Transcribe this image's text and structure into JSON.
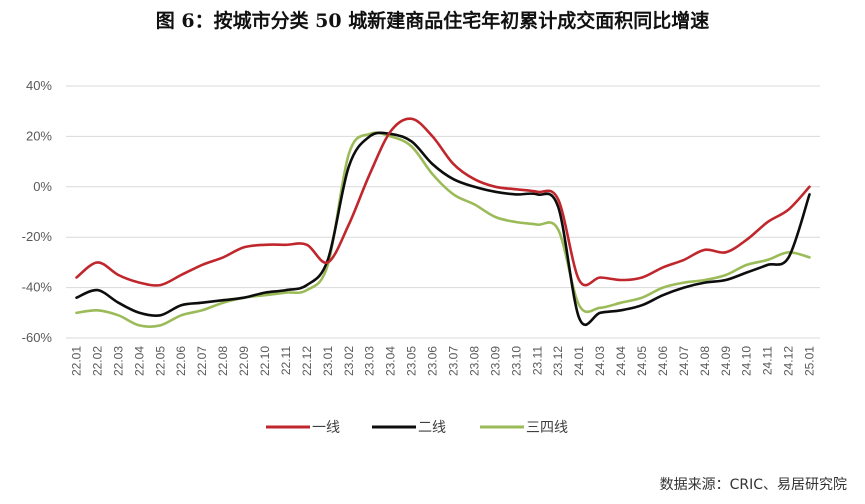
{
  "title": "图 6：按城市分类 50 城新建商品住宅年初累计成交面积同比增速",
  "source": "数据来源：CRIC、易居研究院",
  "chart_data": {
    "type": "line",
    "title": "图 6：按城市分类 50 城新建商品住宅年初累计成交面积同比增速",
    "xlabel": "",
    "ylabel": "",
    "ylim": [
      -60,
      40
    ],
    "yticks": [
      40,
      20,
      0,
      -20,
      -40,
      -60
    ],
    "ytick_labels": [
      "40%",
      "20%",
      "0%",
      "-20%",
      "-40%",
      "-60%"
    ],
    "grid": "horizontal",
    "legend_position": "bottom",
    "categories": [
      "22.01",
      "22.02",
      "22.03",
      "22.04",
      "22.05",
      "22.06",
      "22.07",
      "22.08",
      "22.09",
      "22.10",
      "22.11",
      "22.12",
      "23.01",
      "23.02",
      "23.03",
      "23.04",
      "23.05",
      "23.06",
      "23.07",
      "23.08",
      "23.09",
      "23.10",
      "23.11",
      "23.12",
      "24.01",
      "24.03",
      "24.04",
      "24.05",
      "24.06",
      "24.07",
      "24.08",
      "24.09",
      "24.10",
      "24.11",
      "24.12",
      "25.01"
    ],
    "series": [
      {
        "name": "一线",
        "color": "#C0272D",
        "values": [
          -36,
          -30,
          -35,
          -38,
          -39,
          -35,
          -31,
          -28,
          -24,
          -23,
          -23,
          -23,
          -30,
          -15,
          5,
          22,
          27,
          20,
          9,
          3,
          0,
          -1,
          -2,
          -5,
          -37,
          -36,
          -37,
          -36,
          -32,
          -29,
          -25,
          -26,
          -21,
          -14,
          -9,
          0
        ]
      },
      {
        "name": "二线",
        "color": "#0D0D0D",
        "values": [
          -44,
          -41,
          -46,
          -50,
          -51,
          -47,
          -46,
          -45,
          -44,
          -42,
          -41,
          -39,
          -29,
          8,
          20,
          21,
          18,
          9,
          3,
          0,
          -2,
          -3,
          -3,
          -8,
          -52,
          -50,
          -49,
          -47,
          -43,
          -40,
          -38,
          -37,
          -34,
          -31,
          -28,
          -3
        ]
      },
      {
        "name": "三四线",
        "color": "#9BBB59",
        "values": [
          -50,
          -49,
          -51,
          -55,
          -55,
          -51,
          -49,
          -46,
          -44,
          -43,
          -42,
          -41,
          -31,
          13,
          21,
          20,
          16,
          5,
          -3,
          -7,
          -12,
          -14,
          -15,
          -17,
          -47,
          -48,
          -46,
          -44,
          -40,
          -38,
          -37,
          -35,
          -31,
          -29,
          -26,
          -28
        ]
      }
    ]
  }
}
